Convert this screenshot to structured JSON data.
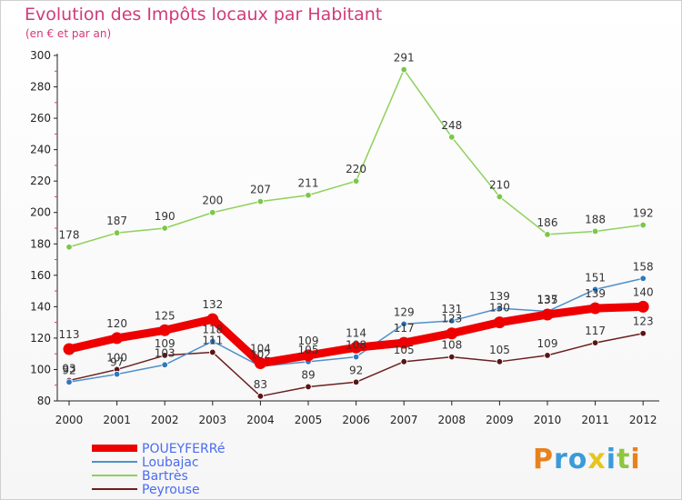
{
  "colors": {
    "title": "#d13a7a",
    "axis": "#222222",
    "grid_tick": "#d13a7a",
    "legend_text": "#4a6cf0",
    "series": [
      "#ee0000",
      "#4f90cc",
      "#8ed15a",
      "#6b1f1f"
    ],
    "markers": [
      "#ee0000",
      "#2f78c0",
      "#7bc74a",
      "#5a1414"
    ],
    "brand": [
      "#e8821e",
      "#3a9bd9",
      "#3a9bd9",
      "#e8c51e",
      "#3a9bd9",
      "#8ec63f"
    ]
  },
  "chart_data": {
    "type": "line",
    "title": "Evolution des Impôts locaux par Habitant",
    "subtitle": "(en € et par an)",
    "xlabel": "",
    "ylabel": "",
    "ylim": [
      80,
      300
    ],
    "yticks": [
      "80",
      "100",
      "120",
      "140",
      "160",
      "180",
      "200",
      "220",
      "240",
      "260",
      "280",
      "300"
    ],
    "x": [
      "2000",
      "2001",
      "2002",
      "2003",
      "2004",
      "2005",
      "2006",
      "2007",
      "2008",
      "2009",
      "2010",
      "2011",
      "2012"
    ],
    "series": [
      {
        "name": "POUEYFERRé",
        "values": [
          113,
          120,
          125,
          132,
          104,
          109,
          114,
          117,
          123,
          130,
          135,
          139,
          140
        ],
        "labels": [
          "113",
          "120",
          "125",
          "132",
          "104",
          "109",
          "114",
          "117",
          "123",
          "130",
          "135",
          "139",
          "140"
        ]
      },
      {
        "name": "Loubajac",
        "values": [
          92,
          97,
          103,
          118,
          102,
          105,
          108,
          129,
          131,
          139,
          137,
          151,
          158
        ],
        "labels": [
          "92",
          "97",
          "103",
          "118",
          "102",
          "105",
          "108",
          "129",
          "131",
          "139",
          "137",
          "151",
          "158"
        ]
      },
      {
        "name": "Bartrès",
        "values": [
          178,
          187,
          190,
          200,
          207,
          211,
          220,
          291,
          248,
          210,
          186,
          188,
          192
        ],
        "labels": [
          "178",
          "187",
          "190",
          "200",
          "207",
          "211",
          "220",
          "291",
          "248",
          "210",
          "186",
          "188",
          "192"
        ]
      },
      {
        "name": "Peyrouse",
        "values": [
          93,
          100,
          109,
          111,
          83,
          89,
          92,
          105,
          108,
          105,
          109,
          117,
          123
        ],
        "labels": [
          "93",
          "100",
          "109",
          "111",
          "83",
          "89",
          "92",
          "105",
          "108",
          "105",
          "109",
          "117",
          "123"
        ]
      }
    ]
  },
  "brand": {
    "letters": [
      "P",
      "r",
      "o",
      "x",
      "i",
      "t",
      "i"
    ]
  }
}
